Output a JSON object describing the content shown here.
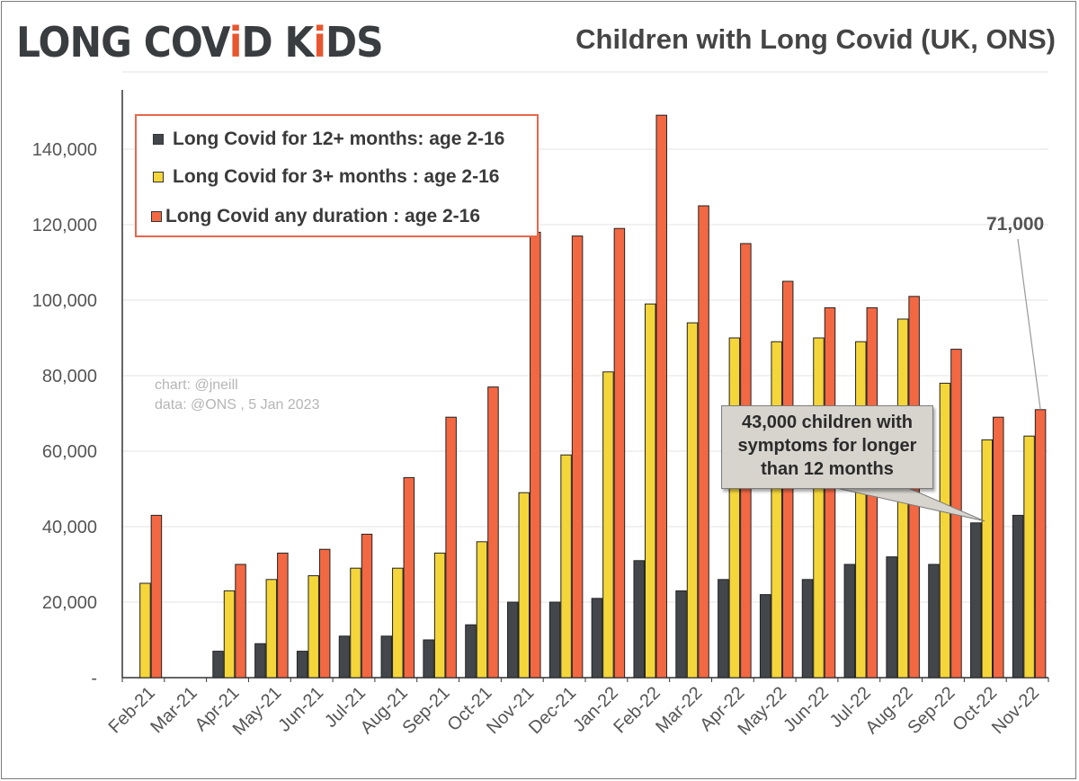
{
  "logo": {
    "part1": "LONG COV",
    "part2": "i",
    "part3": "D K",
    "part4": "i",
    "part5": "DS"
  },
  "chart_data": {
    "type": "bar",
    "title": "Children with Long Covid (UK, ONS)",
    "xlabel": "",
    "ylabel": "",
    "ylim": [
      0,
      150000
    ],
    "yticks": [
      0,
      20000,
      40000,
      60000,
      80000,
      100000,
      120000,
      140000
    ],
    "ytick_labels": [
      "-",
      "20,000",
      "40,000",
      "60,000",
      "80,000",
      "100,000",
      "120,000",
      "140,000"
    ],
    "categories": [
      "Feb-21",
      "Mar-21",
      "Apr-21",
      "May-21",
      "Jun-21",
      "Jul-21",
      "Aug-21",
      "Sep-21",
      "Oct-21",
      "Nov-21",
      "Dec-21",
      "Jan-22",
      "Feb-22",
      "Mar-22",
      "Apr-22",
      "May-22",
      "Jun-22",
      "Jul-22",
      "Aug-22",
      "Sep-22",
      "Oct-22",
      "Nov-22"
    ],
    "series": [
      {
        "name": "Long Covid for 12+ months: age 2-16",
        "color": "#43474b",
        "values": [
          null,
          null,
          7000,
          9000,
          7000,
          11000,
          11000,
          10000,
          14000,
          20000,
          20000,
          21000,
          31000,
          23000,
          26000,
          22000,
          26000,
          30000,
          32000,
          30000,
          41000,
          43000
        ]
      },
      {
        "name": "Long Covid for 3+ months : age 2-16",
        "color": "#f5d63a",
        "values": [
          25000,
          null,
          23000,
          26000,
          27000,
          29000,
          29000,
          33000,
          36000,
          49000,
          59000,
          81000,
          99000,
          94000,
          90000,
          89000,
          90000,
          89000,
          95000,
          78000,
          63000,
          64000
        ]
      },
      {
        "name": "Long Covid any duration : age 2-16",
        "color": "#f26843",
        "values": [
          43000,
          null,
          30000,
          33000,
          34000,
          38000,
          53000,
          69000,
          77000,
          118000,
          117000,
          119000,
          149000,
          125000,
          115000,
          105000,
          98000,
          98000,
          101000,
          87000,
          69000,
          71000
        ]
      }
    ],
    "legend_position": "top-left",
    "annotations": [
      {
        "text": "71,000"
      },
      {
        "text_lines": [
          "43,000 children with",
          "symptoms for longer",
          "than 12 months"
        ]
      }
    ]
  },
  "credit": {
    "line1": "chart: @jneill",
    "line2": "data: @ONS , 5 Jan 2023"
  }
}
